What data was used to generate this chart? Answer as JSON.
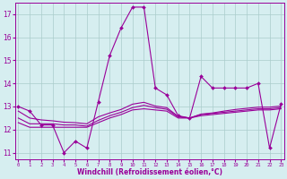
{
  "xlabel": "Windchill (Refroidissement éolien,°C)",
  "background_color": "#d6eef0",
  "line_color": "#990099",
  "grid_color": "#aacccc",
  "x_ticks": [
    0,
    1,
    2,
    3,
    4,
    5,
    6,
    7,
    8,
    9,
    10,
    11,
    12,
    13,
    14,
    15,
    16,
    17,
    18,
    19,
    20,
    21,
    22,
    23
  ],
  "y_ticks": [
    11,
    12,
    13,
    14,
    15,
    16,
    17
  ],
  "ylim": [
    10.7,
    17.5
  ],
  "xlim": [
    -0.3,
    23.3
  ],
  "line1_y": [
    13.0,
    12.8,
    12.2,
    12.2,
    11.0,
    11.5,
    11.2,
    13.2,
    15.2,
    16.4,
    17.3,
    17.3,
    13.8,
    13.5,
    12.6,
    12.5,
    14.3,
    13.8,
    13.8,
    13.8,
    13.8,
    14.0,
    11.2,
    13.1
  ],
  "line2_y": [
    12.3,
    12.1,
    12.1,
    12.1,
    12.1,
    12.1,
    12.1,
    12.3,
    12.5,
    12.65,
    12.85,
    12.9,
    12.85,
    12.8,
    12.5,
    12.5,
    12.6,
    12.65,
    12.7,
    12.75,
    12.8,
    12.85,
    12.85,
    12.9
  ],
  "line3_y": [
    12.5,
    12.25,
    12.25,
    12.25,
    12.2,
    12.2,
    12.15,
    12.4,
    12.6,
    12.75,
    12.95,
    13.05,
    12.95,
    12.88,
    12.55,
    12.5,
    12.65,
    12.7,
    12.75,
    12.8,
    12.85,
    12.9,
    12.9,
    12.95
  ],
  "line4_y": [
    12.8,
    12.5,
    12.42,
    12.38,
    12.32,
    12.3,
    12.25,
    12.55,
    12.72,
    12.87,
    13.1,
    13.18,
    13.02,
    12.95,
    12.57,
    12.5,
    12.67,
    12.72,
    12.8,
    12.87,
    12.92,
    12.97,
    12.97,
    13.02
  ]
}
